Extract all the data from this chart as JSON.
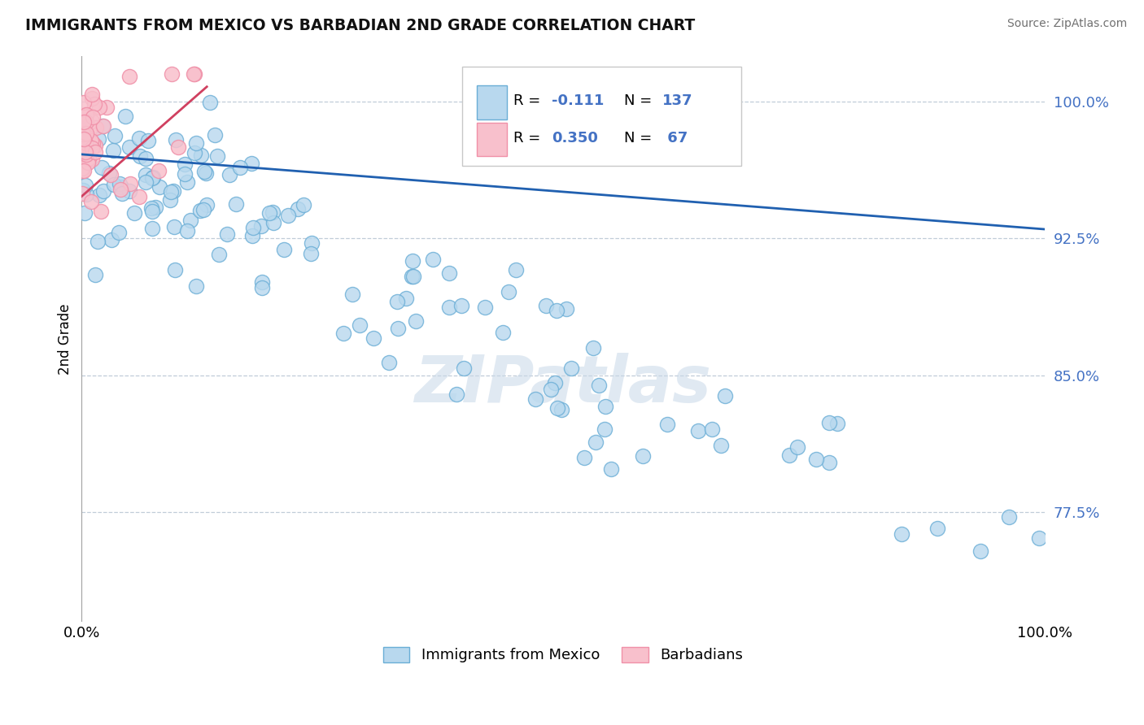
{
  "title": "IMMIGRANTS FROM MEXICO VS BARBADIAN 2ND GRADE CORRELATION CHART",
  "source": "Source: ZipAtlas.com",
  "ylabel": "2nd Grade",
  "ytick_labels": [
    "100.0%",
    "92.5%",
    "85.0%",
    "77.5%"
  ],
  "ytick_values": [
    1.0,
    0.925,
    0.85,
    0.775
  ],
  "xmin": 0.0,
  "xmax": 1.0,
  "ymin": 0.715,
  "ymax": 1.025,
  "blue_color": "#6aaed6",
  "blue_face": "#b8d8ee",
  "pink_color": "#f090a8",
  "pink_face": "#f8c0cc",
  "trend_blue": "#2060b0",
  "trend_pink": "#d04060",
  "legend_blue_color": "#4472c4",
  "watermark": "ZIPatlas",
  "watermark_color": "#c8d8e8",
  "blue_R": -0.111,
  "blue_N": 137,
  "pink_R": 0.35,
  "pink_N": 67,
  "blue_trend_x0": 0.0,
  "blue_trend_x1": 1.0,
  "blue_trend_y0": 0.971,
  "blue_trend_y1": 0.93,
  "pink_trend_x0": 0.0,
  "pink_trend_x1": 0.13,
  "pink_trend_y0": 0.948,
  "pink_trend_y1": 1.008
}
